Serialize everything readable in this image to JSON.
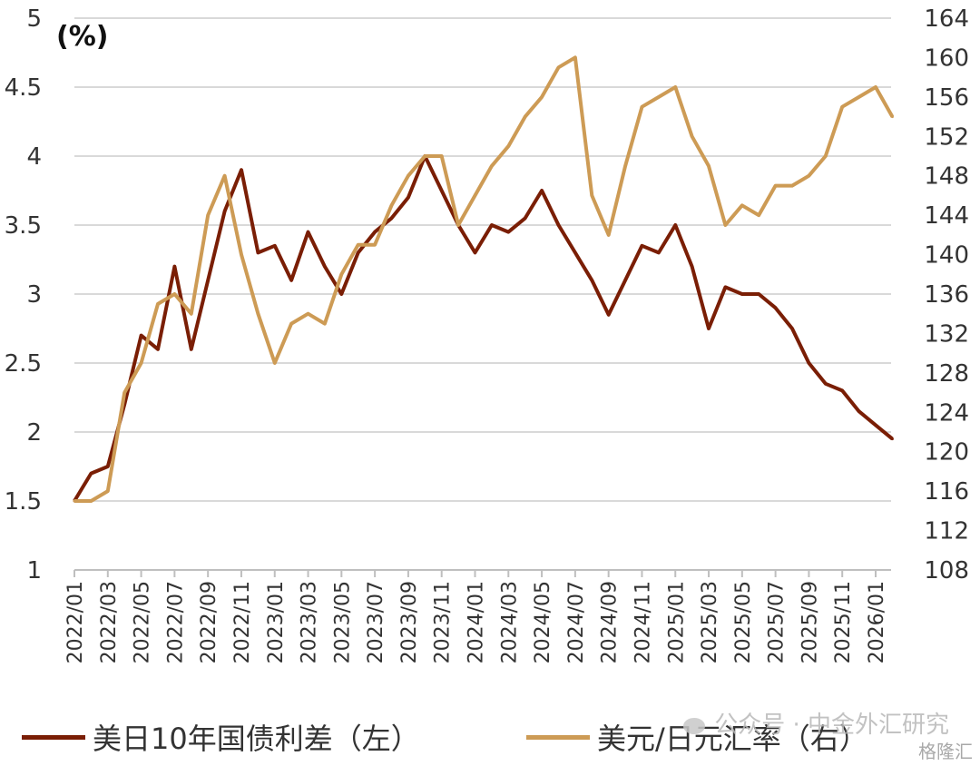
{
  "chart_data": {
    "type": "line",
    "unit_label": "(%)",
    "left_axis": {
      "min": 1,
      "max": 5,
      "ticks": [
        "1",
        "1.5",
        "2",
        "2.5",
        "3",
        "3.5",
        "4",
        "4.5",
        "5"
      ]
    },
    "right_axis": {
      "min": 108,
      "max": 164,
      "ticks": [
        "108",
        "112",
        "116",
        "120",
        "124",
        "128",
        "132",
        "136",
        "140",
        "144",
        "148",
        "152",
        "156",
        "160",
        "164"
      ]
    },
    "x_ticks": [
      "2022/01",
      "2022/03",
      "2022/05",
      "2022/07",
      "2022/09",
      "2022/11",
      "2023/01",
      "2023/03",
      "2023/05",
      "2023/07",
      "2023/09",
      "2023/11",
      "2024/01",
      "2024/03",
      "2024/05",
      "2024/07",
      "2024/09",
      "2024/11",
      "2025/01",
      "2025/03",
      "2025/05",
      "2025/07",
      "2025/09",
      "2025/11",
      "2026/01"
    ],
    "series": [
      {
        "name": "美日10年国债利差（左）",
        "axis": "left",
        "color": "#7a1e05",
        "points": [
          [
            "2022/01",
            1.5
          ],
          [
            "2022/02",
            1.7
          ],
          [
            "2022/03",
            1.75
          ],
          [
            "2022/04",
            2.2
          ],
          [
            "2022/05",
            2.7
          ],
          [
            "2022/06",
            2.6
          ],
          [
            "2022/07",
            3.2
          ],
          [
            "2022/08",
            2.6
          ],
          [
            "2022/09",
            3.1
          ],
          [
            "2022/10",
            3.6
          ],
          [
            "2022/11",
            3.9
          ],
          [
            "2022/12",
            3.3
          ],
          [
            "2023/01",
            3.35
          ],
          [
            "2023/02",
            3.1
          ],
          [
            "2023/03",
            3.45
          ],
          [
            "2023/04",
            3.2
          ],
          [
            "2023/05",
            3.0
          ],
          [
            "2023/06",
            3.3
          ],
          [
            "2023/07",
            3.45
          ],
          [
            "2023/08",
            3.55
          ],
          [
            "2023/09",
            3.7
          ],
          [
            "2023/10",
            4.0
          ],
          [
            "2023/11",
            3.75
          ],
          [
            "2023/12",
            3.5
          ],
          [
            "2024/01",
            3.3
          ],
          [
            "2024/02",
            3.5
          ],
          [
            "2024/03",
            3.45
          ],
          [
            "2024/04",
            3.55
          ],
          [
            "2024/05",
            3.75
          ],
          [
            "2024/06",
            3.5
          ],
          [
            "2024/07",
            3.3
          ],
          [
            "2024/08",
            3.1
          ],
          [
            "2024/09",
            2.85
          ],
          [
            "2024/10",
            3.1
          ],
          [
            "2024/11",
            3.35
          ],
          [
            "2024/12",
            3.3
          ],
          [
            "2025/01",
            3.5
          ],
          [
            "2025/02",
            3.2
          ],
          [
            "2025/03",
            2.75
          ],
          [
            "2025/04",
            3.05
          ],
          [
            "2025/05",
            3.0
          ],
          [
            "2025/06",
            3.0
          ],
          [
            "2025/07",
            2.9
          ],
          [
            "2025/08",
            2.75
          ],
          [
            "2025/09",
            2.5
          ],
          [
            "2025/10",
            2.35
          ],
          [
            "2025/11",
            2.3
          ],
          [
            "2025/12",
            2.15
          ],
          [
            "2026/01",
            2.05
          ],
          [
            "2026/02",
            1.95
          ]
        ]
      },
      {
        "name": "美元/日元汇率（右）",
        "axis": "right",
        "color": "#cd9b55",
        "points": [
          [
            "2022/01",
            115
          ],
          [
            "2022/02",
            115
          ],
          [
            "2022/03",
            116
          ],
          [
            "2022/04",
            126
          ],
          [
            "2022/05",
            129
          ],
          [
            "2022/06",
            135
          ],
          [
            "2022/07",
            136
          ],
          [
            "2022/08",
            134
          ],
          [
            "2022/09",
            144
          ],
          [
            "2022/10",
            148
          ],
          [
            "2022/11",
            140
          ],
          [
            "2022/12",
            134
          ],
          [
            "2023/01",
            129
          ],
          [
            "2023/02",
            133
          ],
          [
            "2023/03",
            134
          ],
          [
            "2023/04",
            133
          ],
          [
            "2023/05",
            138
          ],
          [
            "2023/06",
            141
          ],
          [
            "2023/07",
            141
          ],
          [
            "2023/08",
            145
          ],
          [
            "2023/09",
            148
          ],
          [
            "2023/10",
            150
          ],
          [
            "2023/11",
            150
          ],
          [
            "2023/12",
            143
          ],
          [
            "2024/01",
            146
          ],
          [
            "2024/02",
            149
          ],
          [
            "2024/03",
            151
          ],
          [
            "2024/04",
            154
          ],
          [
            "2024/05",
            156
          ],
          [
            "2024/06",
            159
          ],
          [
            "2024/07",
            160
          ],
          [
            "2024/08",
            146
          ],
          [
            "2024/09",
            142
          ],
          [
            "2024/10",
            149
          ],
          [
            "2024/11",
            155
          ],
          [
            "2024/12",
            156
          ],
          [
            "2025/01",
            157
          ],
          [
            "2025/02",
            152
          ],
          [
            "2025/03",
            149
          ],
          [
            "2025/04",
            143
          ],
          [
            "2025/05",
            145
          ],
          [
            "2025/06",
            144
          ],
          [
            "2025/07",
            147
          ],
          [
            "2025/08",
            147
          ],
          [
            "2025/09",
            148
          ],
          [
            "2025/10",
            150
          ],
          [
            "2025/11",
            155
          ],
          [
            "2025/12",
            156
          ],
          [
            "2026/01",
            157
          ],
          [
            "2026/02",
            154
          ]
        ]
      }
    ],
    "grid": true,
    "legend_position": "bottom"
  },
  "watermark": {
    "text": "公众号 · 中金外汇研究",
    "text2": "格隆汇"
  }
}
